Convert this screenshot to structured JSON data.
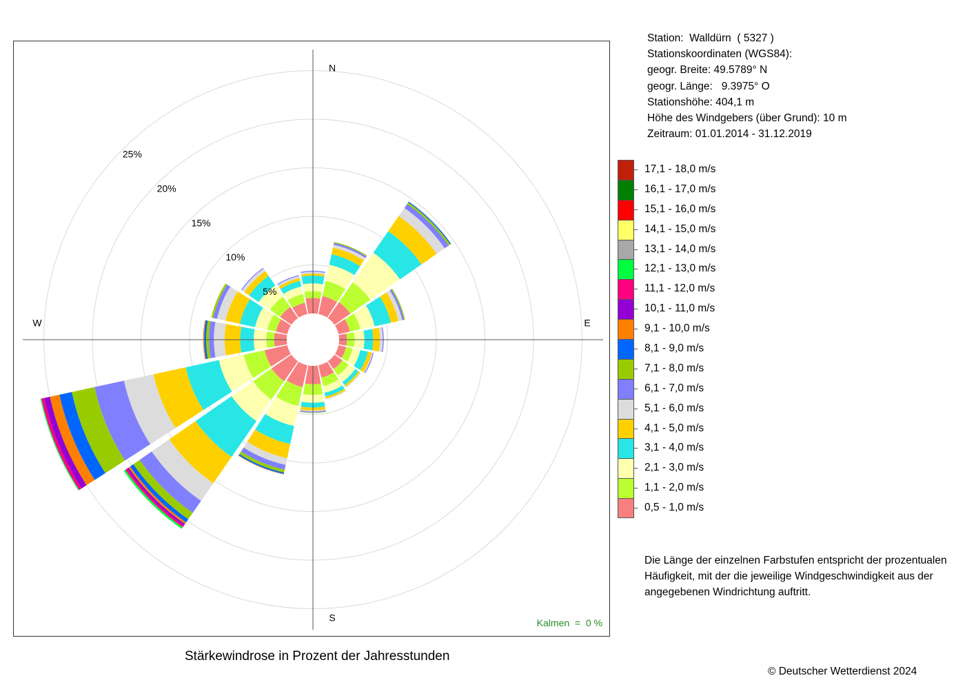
{
  "station": {
    "lines": [
      "Station:  Walldürn  ( 5327 )",
      "Stationskoordinaten (WGS84):",
      "geogr. Breite: 49.5789° N",
      "geogr. Länge:   9.3975° O",
      "Stationshöhe: 404,1 m",
      "Höhe des Windgebers (über Grund): 10 m",
      "Zeitraum: 01.01.2014 - 31.12.2019"
    ]
  },
  "legend": {
    "classes": [
      {
        "label": "17,1 - 18,0 m/s",
        "color": "#C0200A"
      },
      {
        "label": "16,1 - 17,0 m/s",
        "color": "#007F00"
      },
      {
        "label": "15,1 - 16,0 m/s",
        "color": "#FF0000"
      },
      {
        "label": "14,1 - 15,0 m/s",
        "color": "#FFFF66"
      },
      {
        "label": "13,1 - 14,0 m/s",
        "color": "#A8A8A8"
      },
      {
        "label": "12,1 - 13,0 m/s",
        "color": "#00FF40"
      },
      {
        "label": "11,1 - 12,0 m/s",
        "color": "#FF0080"
      },
      {
        "label": "10,1 - 11,0 m/s",
        "color": "#9400D3"
      },
      {
        "label": "9,1 - 10,0 m/s",
        "color": "#FF8000"
      },
      {
        "label": "8,1 - 9,0 m/s",
        "color": "#0066FF"
      },
      {
        "label": "7,1 - 8,0 m/s",
        "color": "#99CC00"
      },
      {
        "label": "6,1 - 7,0 m/s",
        "color": "#8080FF"
      },
      {
        "label": "5,1 - 6,0 m/s",
        "color": "#DCDCDC"
      },
      {
        "label": "4,1 - 5,0 m/s",
        "color": "#FFD000"
      },
      {
        "label": "3,1 - 4,0 m/s",
        "color": "#28E6E6"
      },
      {
        "label": "2,1 - 3,0 m/s",
        "color": "#FFFFB0"
      },
      {
        "label": "1,1 - 2,0 m/s",
        "color": "#BBFF33"
      },
      {
        "label": "0,5 - 1,0 m/s",
        "color": "#F77F7F"
      }
    ]
  },
  "explanation": "Die Länge der einzelnen Farbstufen entspricht der prozentualen Häufigkeit, mit der die jeweilige Windgeschwindigkeit aus der angegebenen Windrichtung auftritt.",
  "calm_label": "Kalmen  =  0 %",
  "calm_color": "#228B22",
  "title": "Stärkewindrose in Prozent der Jahresstunden",
  "copyright": "© Deutscher Wetterdienst  2024",
  "chart_data": {
    "type": "wind-rose",
    "directions": [
      "N",
      "NNE",
      "NE",
      "ENE",
      "E",
      "ESE",
      "SE",
      "SSE",
      "S",
      "SSW",
      "SW",
      "WSW",
      "W",
      "WNW",
      "NW",
      "NNW"
    ],
    "compass_labels": [
      "N",
      "E",
      "S",
      "W"
    ],
    "radial_labels": [
      "5%",
      "10%",
      "15%",
      "20%",
      "25%"
    ],
    "radial_ticks": [
      5,
      10,
      15,
      20,
      25
    ],
    "radial_max_percent": 25,
    "calm_percent": 0,
    "speed_order": [
      "0,5 - 1,0 m/s",
      "1,1 - 2,0 m/s",
      "2,1 - 3,0 m/s",
      "3,1 - 4,0 m/s",
      "4,1 - 5,0 m/s",
      "5,1 - 6,0 m/s",
      "6,1 - 7,0 m/s",
      "7,1 - 8,0 m/s",
      "8,1 - 9,0 m/s",
      "9,1 - 10,0 m/s",
      "10,1 - 11,0 m/s",
      "11,1 - 12,0 m/s",
      "12,1 - 13,0 m/s",
      "13,1 - 14,0 m/s",
      "14,1 - 15,0 m/s",
      "15,1 - 16,0 m/s",
      "16,1 - 17,0 m/s",
      "17,1 - 18,0 m/s"
    ],
    "cumulative_percent": {
      "N": [
        1.6,
        2.3,
        3.1,
        3.9,
        4.1,
        4.3,
        4.4
      ],
      "NNE": [
        1.9,
        3.5,
        5.2,
        6.3,
        7.0,
        7.3,
        7.5,
        7.6
      ],
      "NE": [
        2.0,
        4.5,
        8.2,
        10.9,
        12.8,
        13.8,
        14.3,
        14.5,
        14.6
      ],
      "ENE": [
        1.2,
        2.3,
        3.8,
        5.5,
        6.3,
        6.7,
        6.9,
        7.0
      ],
      "E": [
        0.8,
        1.6,
        2.6,
        3.5,
        4.2,
        4.5,
        4.6
      ],
      "ESE": [
        0.8,
        1.5,
        2.3,
        3.1,
        3.5,
        3.6,
        3.7
      ],
      "SE": [
        1.0,
        1.8,
        2.6,
        3.0,
        3.2,
        3.3
      ],
      "SSE": [
        1.3,
        2.2,
        2.9,
        3.3,
        3.5,
        3.6
      ],
      "S": [
        1.9,
        3.0,
        3.8,
        4.3,
        4.6,
        4.7,
        4.8,
        4.85
      ],
      "SSW": [
        2.3,
        4.3,
        6.4,
        8.3,
        9.8,
        10.5,
        11.0,
        11.3,
        11.45,
        11.5
      ],
      "SW": [
        2.5,
        4.8,
        7.5,
        12.0,
        15.3,
        17.5,
        19.0,
        19.8,
        20.2,
        20.4,
        20.6,
        20.8,
        21.0
      ],
      "WSW": [
        2.4,
        4.6,
        7.2,
        10.7,
        14.1,
        17.2,
        20.3,
        22.7,
        24.0,
        25.0,
        25.6,
        25.9,
        26.0
      ],
      "W": [
        1.3,
        2.1,
        3.4,
        4.8,
        6.4,
        7.5,
        8.0,
        8.3,
        8.5,
        8.6
      ],
      "WNW": [
        1.2,
        2.1,
        3.4,
        5.0,
        6.5,
        7.4,
        7.8,
        8.0
      ],
      "NW": [
        1.4,
        2.7,
        4.1,
        5.3,
        5.9,
        6.2,
        6.3
      ],
      "NNW": [
        1.2,
        2.1,
        2.9,
        3.5,
        3.8,
        4.0,
        4.1
      ]
    }
  }
}
